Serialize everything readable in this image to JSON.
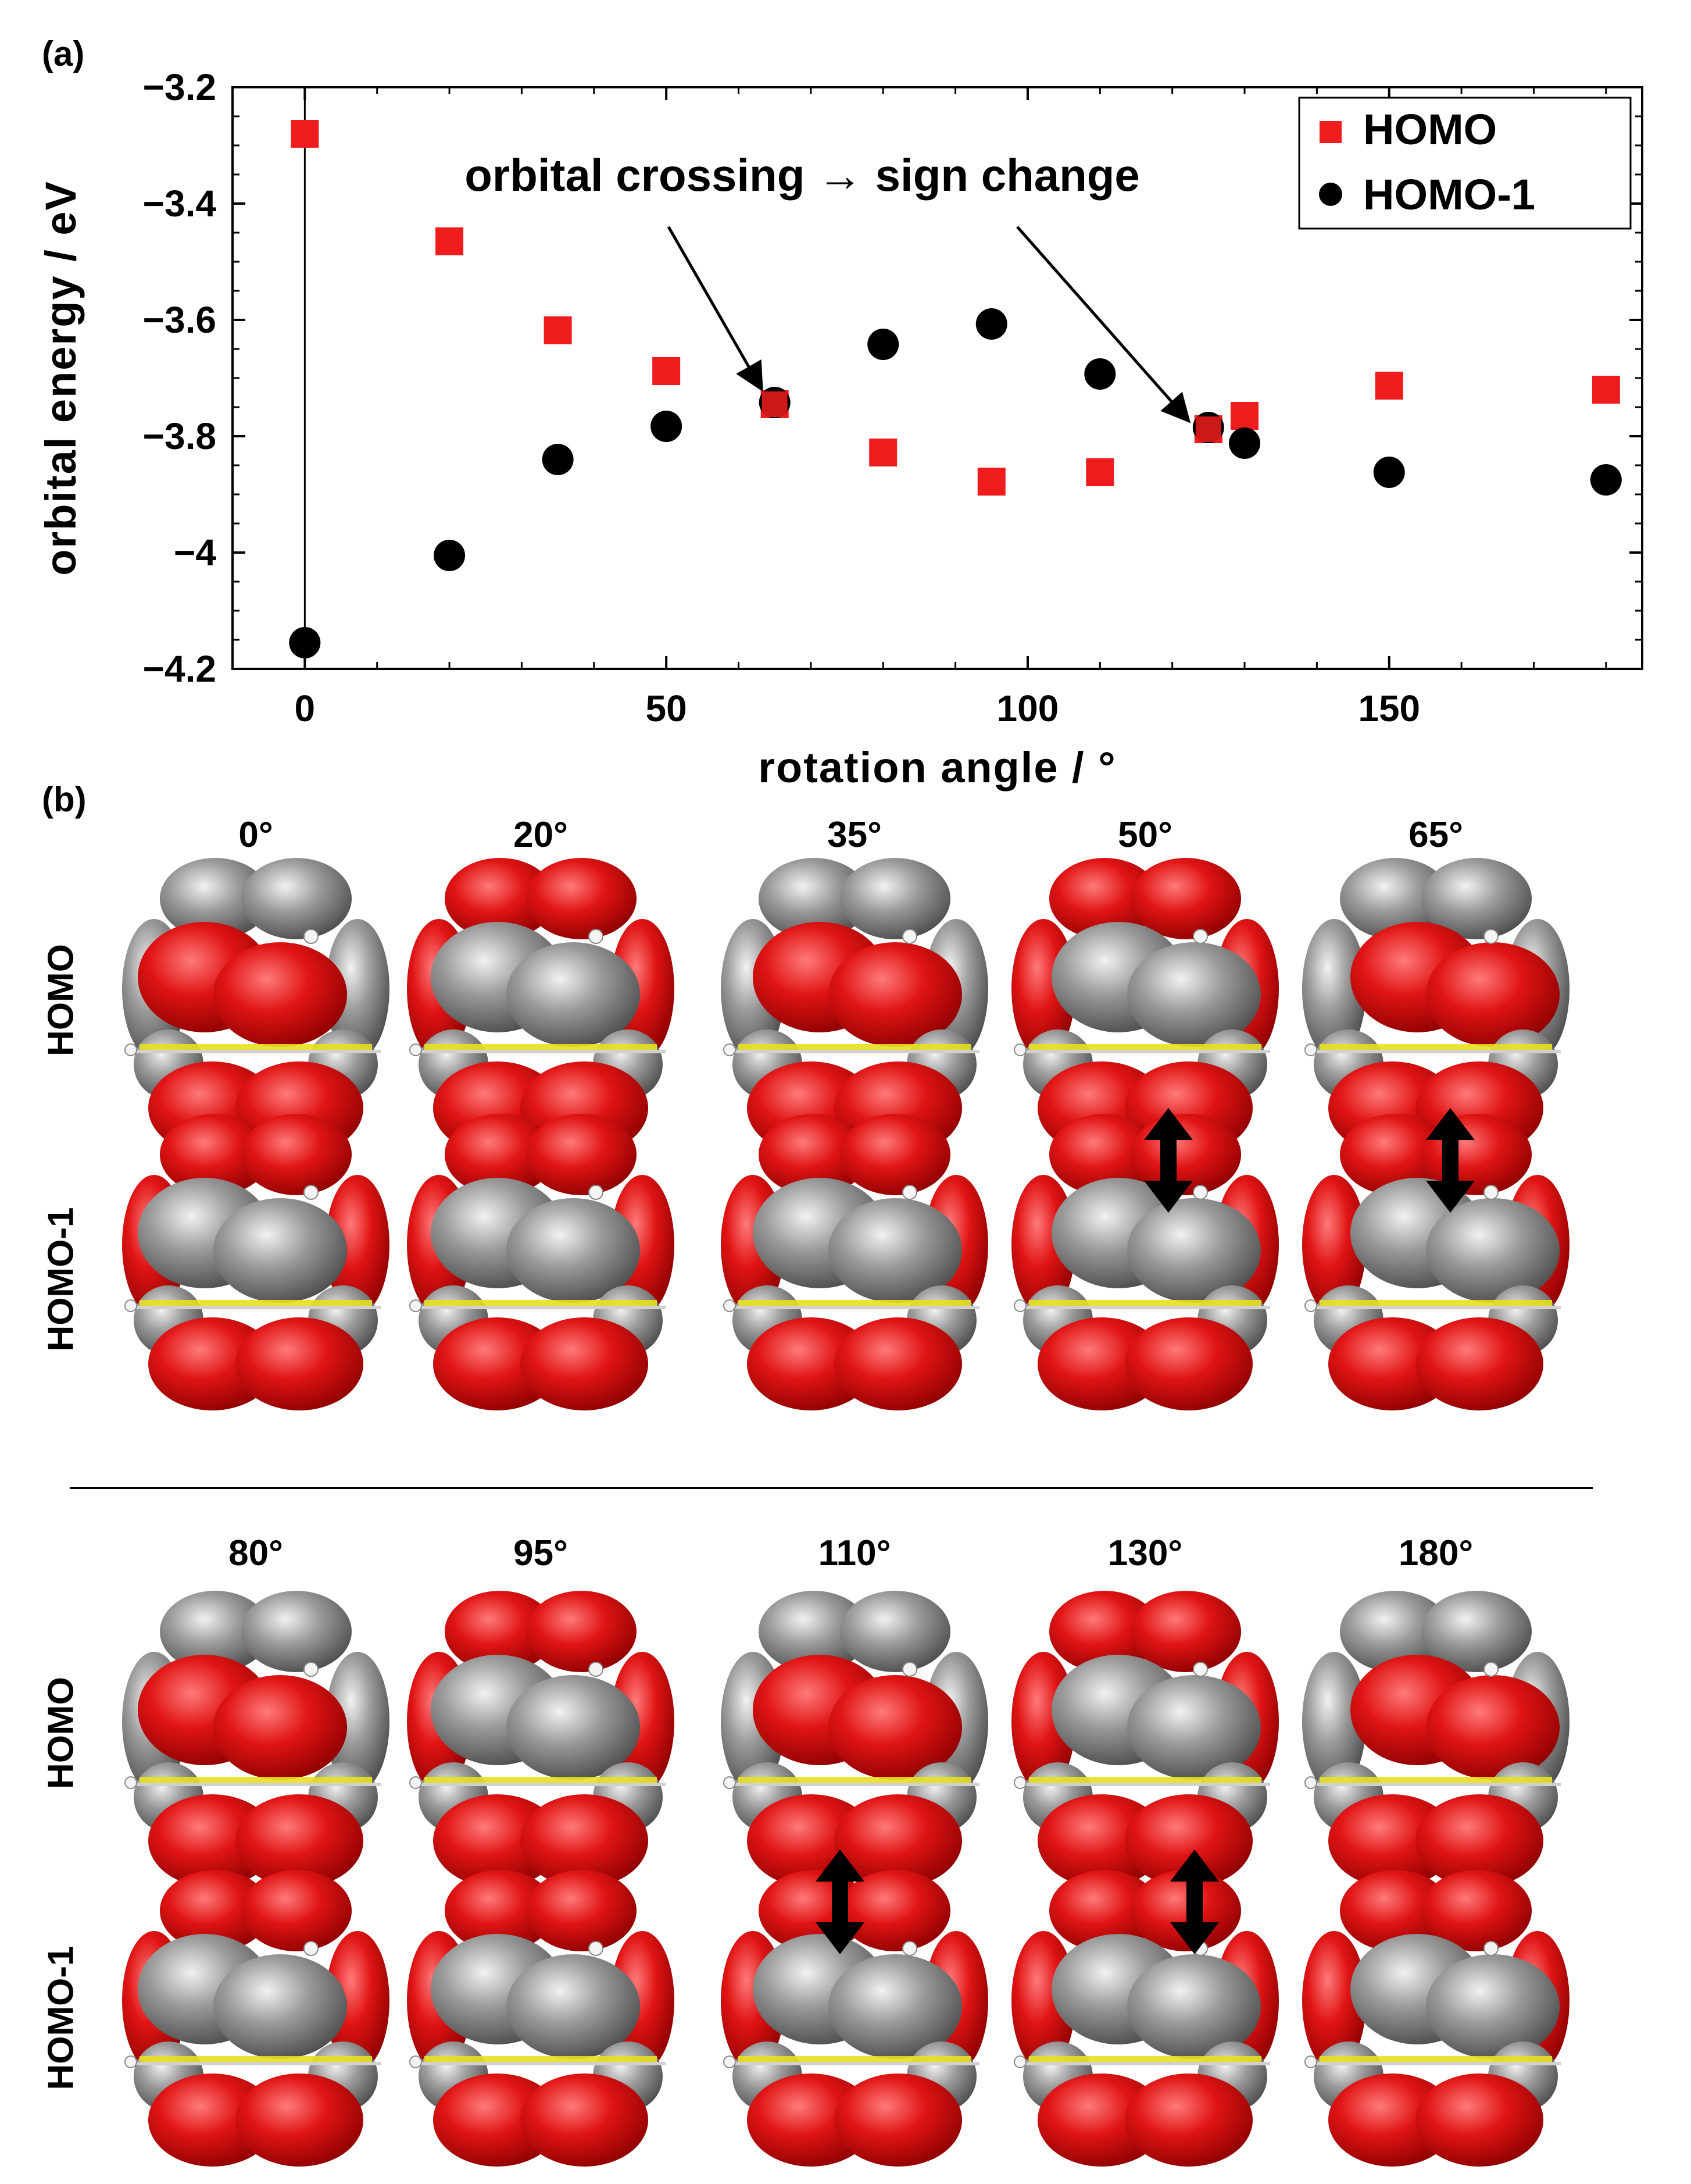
{
  "panel_a_label": "(a)",
  "panel_b_label": "(b)",
  "chart_data": {
    "type": "scatter",
    "xlabel": "rotation angle / °",
    "ylabel": "orbital energy / eV",
    "xlim": [
      -10,
      185
    ],
    "ylim": [
      -4.2,
      -3.2
    ],
    "xticks": [
      0,
      50,
      100,
      150
    ],
    "xtick_labels": [
      "0",
      "50",
      "100",
      "150"
    ],
    "yticks": [
      -3.2,
      -3.4,
      -3.6,
      -3.8,
      -4,
      -4.2
    ],
    "ytick_labels": [
      "−3.2",
      "−3.4",
      "−3.6",
      "−3.8",
      "−4",
      "−4.2"
    ],
    "x": [
      0,
      20,
      35,
      50,
      65,
      80,
      95,
      110,
      125,
      130,
      150,
      180
    ],
    "series": [
      {
        "name": "HOMO",
        "marker": "square",
        "color": "#ee1c1c",
        "values": [
          -3.28,
          -3.465,
          -3.618,
          -3.688,
          -3.745,
          -3.828,
          -3.878,
          -3.862,
          -3.788,
          -3.765,
          -3.713,
          -3.72
        ]
      },
      {
        "name": "HOMO-1",
        "marker": "circle",
        "color": "#000000",
        "values": [
          -4.155,
          -4.005,
          -3.84,
          -3.783,
          -3.742,
          -3.642,
          -3.607,
          -3.693,
          -3.785,
          -3.812,
          -3.862,
          -3.875
        ]
      }
    ],
    "annotation": {
      "text": "orbital crossing → sign change",
      "arrows_to": [
        [
          63,
          -3.715
        ],
        [
          122,
          -3.77
        ]
      ]
    },
    "legend_position": "top-right",
    "grid": false
  },
  "orbital_panel": {
    "row_labels": [
      "HOMO",
      "HOMO-1",
      "HOMO",
      "HOMO-1"
    ],
    "top_angles": [
      "0°",
      "20°",
      "35°",
      "50°",
      "65°"
    ],
    "bottom_angles": [
      "80°",
      "95°",
      "110°",
      "130°",
      "180°"
    ],
    "crossing_angles": [
      "50°",
      "65°",
      "110°",
      "130°"
    ],
    "colors": {
      "positive": "#dd1111",
      "negative": "#8a8a8a",
      "bond": "#e8e020"
    }
  }
}
